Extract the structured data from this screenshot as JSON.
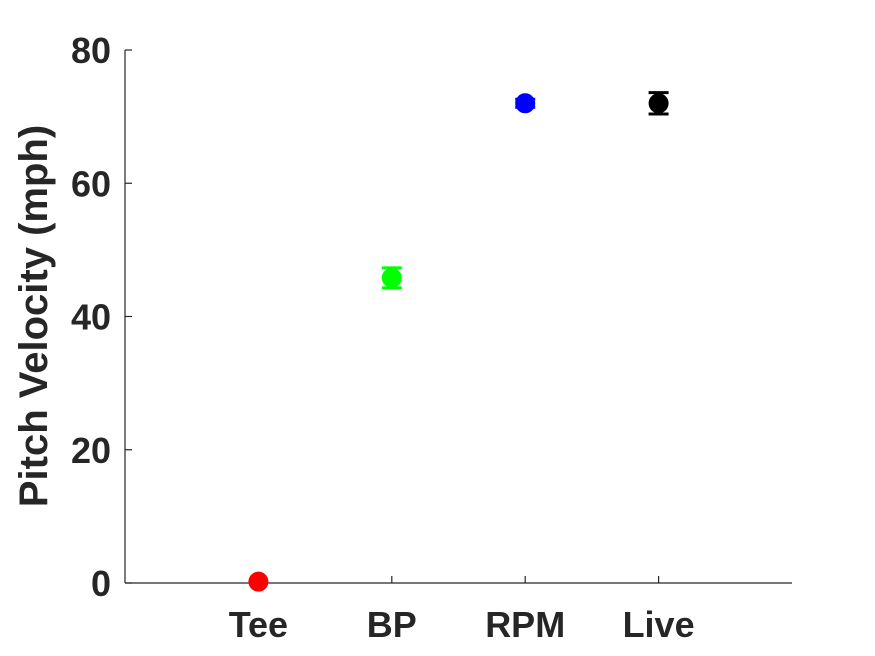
{
  "chart_data": {
    "type": "scatter",
    "title": "",
    "xlabel": "",
    "ylabel": "Pitch Velocity (mph)",
    "categories": [
      "Tee",
      "BP",
      "RPM",
      "Live"
    ],
    "xlim": [
      0,
      5
    ],
    "ylim": [
      0,
      80
    ],
    "yticks": [
      "0",
      "20",
      "40",
      "60",
      "80"
    ],
    "grid": false,
    "points": [
      {
        "category": "Tee",
        "x": 1,
        "y": 0.2,
        "err": 0.0,
        "color": "#ff0000"
      },
      {
        "category": "BP",
        "x": 2,
        "y": 45.8,
        "err": 1.5,
        "color": "#00ff00"
      },
      {
        "category": "RPM",
        "x": 3,
        "y": 72.0,
        "err": 0.6,
        "color": "#0000ff"
      },
      {
        "category": "Live",
        "x": 4,
        "y": 72.0,
        "err": 1.6,
        "color": "#000000"
      }
    ]
  }
}
